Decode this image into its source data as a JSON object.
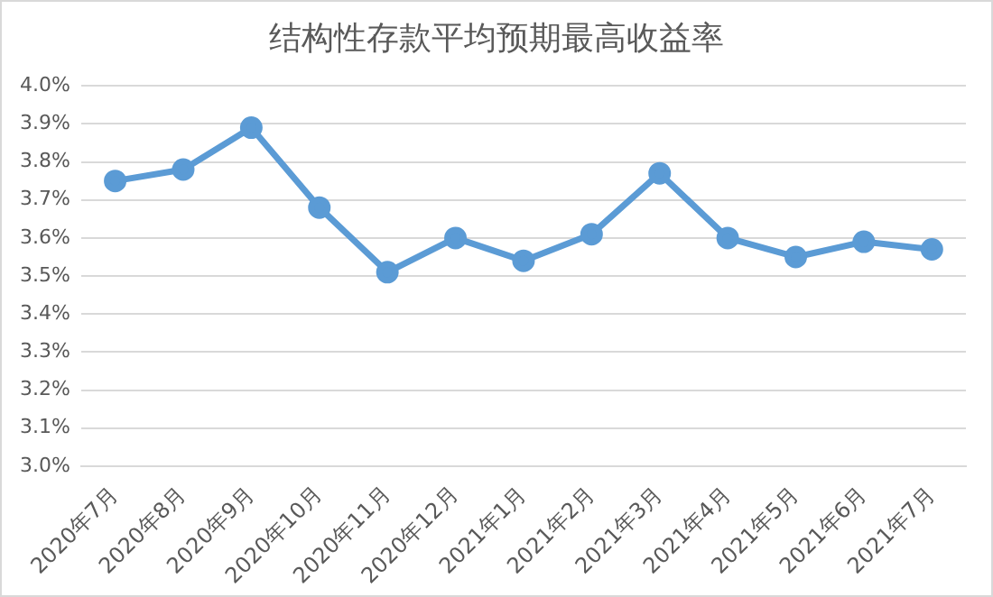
{
  "chart_data": {
    "type": "line",
    "title": "结构性存款平均预期最高收益率",
    "categories": [
      "2020年7月",
      "2020年8月",
      "2020年9月",
      "2020年10月",
      "2020年11月",
      "2020年12月",
      "2021年1月",
      "2021年2月",
      "2021年3月",
      "2021年4月",
      "2021年5月",
      "2021年6月",
      "2021年7月"
    ],
    "series": [
      {
        "color": "#5b9bd5",
        "values": [
          3.75,
          3.78,
          3.89,
          3.68,
          3.51,
          3.6,
          3.54,
          3.61,
          3.77,
          3.6,
          3.55,
          3.59,
          3.57
        ]
      }
    ],
    "ylim": [
      3.0,
      4.0
    ],
    "yticks": [
      {
        "value": 3.0,
        "label": "3.0%"
      },
      {
        "value": 3.1,
        "label": "3.1%"
      },
      {
        "value": 3.2,
        "label": "3.2%"
      },
      {
        "value": 3.3,
        "label": "3.3%"
      },
      {
        "value": 3.4,
        "label": "3.4%"
      },
      {
        "value": 3.5,
        "label": "3.5%"
      },
      {
        "value": 3.6,
        "label": "3.6%"
      },
      {
        "value": 3.7,
        "label": "3.7%"
      },
      {
        "value": 3.8,
        "label": "3.8%"
      },
      {
        "value": 3.9,
        "label": "3.9%"
      },
      {
        "value": 4.0,
        "label": "4.0%"
      }
    ],
    "grid": "y",
    "legend": false,
    "marker": "circle",
    "line_style": "solid"
  }
}
